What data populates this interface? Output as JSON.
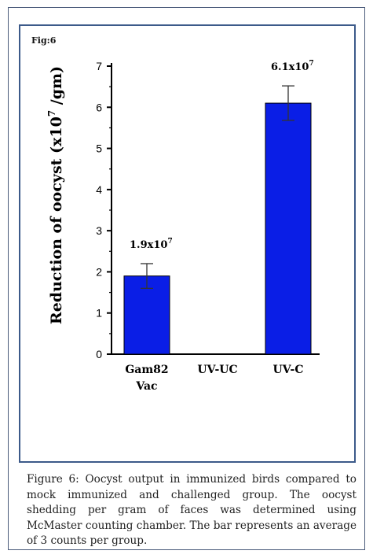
{
  "figure": {
    "fig_label": "Fig:6",
    "caption_label": "Figure 6:",
    "caption_text": "Oocyst output in immunized birds compared to mock immunized and challenged group. The oocyst shedding per gram of faces was determined using McMaster counting chamber. The bar represents an average of 3 counts per group."
  },
  "chart_data": {
    "type": "bar",
    "ylabel_prefix": "Reduction of oocyst (x10",
    "ylabel_exp": "7",
    "ylabel_suffix": " /gm)",
    "ylim": [
      0,
      7
    ],
    "yticks": [
      "0",
      "1",
      "2",
      "3",
      "4",
      "5",
      "6",
      "7"
    ],
    "categories": [
      {
        "line1": "Gam82",
        "line2": "Vac"
      },
      {
        "line1": "UV-UC",
        "line2": ""
      },
      {
        "line1": "UV-C",
        "line2": ""
      }
    ],
    "values": [
      1.9,
      0,
      6.1
    ],
    "errors": [
      0.3,
      0,
      0.42
    ],
    "bar_labels": [
      {
        "base": "1.9x10",
        "exp": "7"
      },
      {
        "base": "",
        "exp": ""
      },
      {
        "base": "6.1x10",
        "exp": "7"
      }
    ],
    "bar_color": "#0a1ee6",
    "grid": false
  }
}
